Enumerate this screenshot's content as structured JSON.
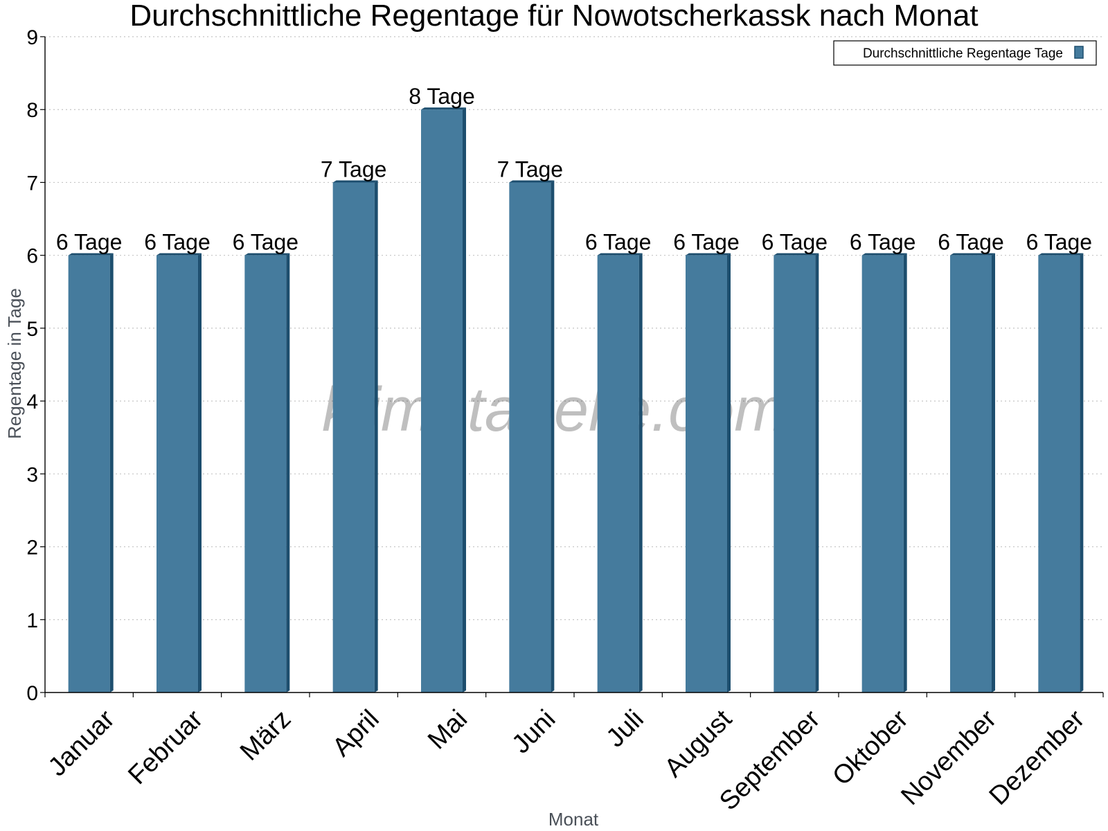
{
  "chart_data": {
    "type": "bar",
    "title": "Durchschnittliche Regentage für Nowotscherkassk nach Monat",
    "xlabel": "Monat",
    "ylabel": "Regentage in Tage",
    "ylim": [
      0,
      9
    ],
    "yticks": [
      0,
      1,
      2,
      3,
      4,
      5,
      6,
      7,
      8,
      9
    ],
    "grid": true,
    "legend_position": "top-right",
    "categories": [
      "Januar",
      "Februar",
      "März",
      "April",
      "Mai",
      "Juni",
      "Juli",
      "August",
      "September",
      "Oktober",
      "November",
      "Dezember"
    ],
    "series": [
      {
        "name": "Durchschnittliche Regentage Tage",
        "values": [
          6,
          6,
          6,
          7,
          8,
          7,
          6,
          6,
          6,
          6,
          6,
          6
        ],
        "labels": [
          "6 Tage",
          "6 Tage",
          "6 Tage",
          "7 Tage",
          "8 Tage",
          "7 Tage",
          "6 Tage",
          "6 Tage",
          "6 Tage",
          "6 Tage",
          "6 Tage",
          "6 Tage"
        ],
        "color": "#457b9d",
        "dark_color": "#1d4e6e"
      }
    ],
    "watermark": "klimatabelle.com"
  }
}
